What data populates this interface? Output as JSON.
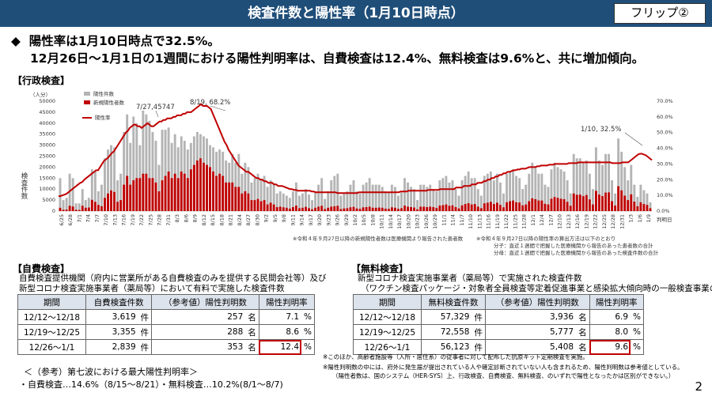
{
  "header": {
    "title": "検査件数と陽性率（1月10日時点）",
    "flip_label": "フリップ②"
  },
  "headline": {
    "bullet": "◆",
    "line1": "陽性率は1月10日時点で32.5%。",
    "line2": "12月26日～1月1日の1週間における陽性判明率は、自費検査は12.4%、無料検査は9.6%と、共に増加傾向。"
  },
  "admin_section": "【行政検査】",
  "chart_data": {
    "type": "bar+line",
    "y_unit": "（人分）",
    "ylabel": "検査件数",
    "ylim": [
      0,
      50000
    ],
    "y2lim": [
      0,
      70
    ],
    "y_ticks": [
      "0",
      "5000",
      "10000",
      "15000",
      "20000",
      "25000",
      "30000",
      "35000",
      "40000",
      "45000",
      "50000"
    ],
    "y2_ticks": [
      "0.0%",
      "10.0%",
      "20.0%",
      "30.0%",
      "40.0%",
      "50.0%",
      "60.0%",
      "70.0%"
    ],
    "x_ticks": [
      "6/25",
      "6/28",
      "7/1",
      "7/4",
      "7/7",
      "7/10",
      "7/13",
      "7/16",
      "7/19",
      "7/22",
      "7/25",
      "7/28",
      "7/31",
      "8/3",
      "8/6",
      "8/9",
      "8/12",
      "8/15",
      "8/18",
      "8/21",
      "8/24",
      "8/27",
      "8/30",
      "9/2",
      "9/5",
      "9/8",
      "9/11",
      "9/14",
      "9/17",
      "9/20",
      "9/23",
      "9/26",
      "9/29",
      "10/2",
      "10/5",
      "10/8",
      "10/11",
      "10/14",
      "10/17",
      "10/20",
      "10/23",
      "10/26",
      "10/29",
      "11/1",
      "11/4",
      "11/7",
      "11/10",
      "11/13",
      "11/16",
      "11/19",
      "11/22",
      "11/25",
      "11/28",
      "12/1",
      "12/4",
      "12/7",
      "12/10",
      "12/13",
      "12/16",
      "12/19",
      "12/22",
      "12/25",
      "12/28",
      "12/31",
      "1/3",
      "1/6",
      "1/9"
    ],
    "x_axis_label": "判明日",
    "legend": [
      "陽性件数",
      "新規陽性者数",
      "陽性率"
    ],
    "legend_position": "top-left",
    "colors": {
      "tests": "#b4b4b4",
      "positives": "#c00000",
      "rate": "#c00000"
    },
    "annotations": [
      "7/27,45747",
      "8/19, 68.2%",
      "1/10, 32.5%"
    ],
    "grid": false,
    "series": [
      {
        "name": "陽性件数",
        "values": [
          15000,
          5000,
          6000,
          17000,
          15000,
          3500,
          3500,
          10000,
          5000,
          6000,
          19000,
          18000,
          9000,
          12000,
          24000,
          28000,
          30000,
          29000,
          14000,
          17000,
          36000,
          44000,
          31000,
          43000,
          40000,
          30000,
          45747,
          44000,
          41000,
          36000,
          32000,
          21000,
          37000,
          37000,
          38000,
          31000,
          35000,
          29000,
          34000,
          32000,
          28000,
          31000,
          34000,
          36000,
          35000,
          34000,
          33000,
          30000,
          29000,
          27000,
          28000,
          27000,
          23000,
          22000,
          26000,
          22000,
          26000,
          17000,
          22000,
          20000,
          13000,
          15000,
          17000,
          14000,
          16000,
          11000,
          14000,
          12000,
          8000,
          9000,
          8000,
          7000,
          6000,
          9000,
          13000,
          7000,
          8000,
          10000,
          7500,
          5000,
          9000,
          12000,
          15000,
          5500,
          9000,
          14000,
          16000,
          17000,
          7000,
          8000,
          9000,
          12000,
          14000,
          9000,
          8000,
          12000,
          13000,
          15000,
          12000,
          12000,
          12000,
          11000,
          9000,
          8500,
          12000,
          11000,
          7000,
          8500,
          15000,
          13000,
          11000,
          10000,
          5000,
          12000,
          12000,
          11000,
          12000,
          10000,
          9000,
          14000,
          15000,
          16000,
          13000,
          14000,
          10000,
          7000,
          14000,
          16000,
          18000,
          15000,
          15000,
          10000,
          7000,
          16000,
          17000,
          18000,
          14000,
          17000,
          13000,
          8000,
          17000,
          18000,
          19000,
          16000,
          15000,
          10000,
          12000,
          17000,
          22000,
          20000,
          17000,
          17000,
          12000,
          11000,
          19000,
          22000,
          20000,
          19000,
          18000,
          14000,
          8000,
          26000,
          24000,
          24000,
          22000,
          23000,
          17000,
          10000,
          29000,
          23000,
          21000,
          26000,
          26000,
          14000,
          8000,
          33000,
          27000,
          20000,
          14000,
          21000,
          12000,
          6500,
          12000,
          9500,
          8000,
          4000
        ]
      },
      {
        "name": "新規陽性者数",
        "values": [
          1500,
          600,
          700,
          2400,
          2100,
          600,
          500,
          2400,
          1500,
          1600,
          5100,
          4200,
          2800,
          2200,
          6000,
          8000,
          9400,
          8700,
          4200,
          5000,
          12000,
          16000,
          12000,
          14000,
          15000,
          15000,
          17000,
          17000,
          15000,
          15000,
          13000,
          9000,
          14000,
          16000,
          18000,
          15000,
          17000,
          15000,
          18000,
          17000,
          15000,
          19000,
          21000,
          23000,
          24000,
          22000,
          21000,
          20000,
          18000,
          16000,
          17000,
          16000,
          13000,
          13000,
          13000,
          11000,
          11000,
          8000,
          9000,
          8000,
          5000,
          5000,
          5500,
          4500,
          5000,
          3000,
          3800,
          3000,
          1800,
          2000,
          1700,
          1500,
          1100,
          1800,
          2500,
          1300,
          1500,
          1900,
          1300,
          800,
          1500,
          2000,
          2400,
          900,
          1500,
          2000,
          2200,
          2400,
          900,
          1200,
          1300,
          1700,
          1900,
          1200,
          1000,
          1700,
          1800,
          2000,
          1500,
          1500,
          1600,
          1500,
          1100,
          1000,
          1700,
          1500,
          1000,
          1300,
          2500,
          2000,
          1800,
          1600,
          800,
          2000,
          2000,
          1800,
          2000,
          1800,
          1400,
          2500,
          2700,
          3000,
          2400,
          2600,
          1800,
          1200,
          2600,
          3200,
          3600,
          3000,
          3200,
          2000,
          1300,
          3500,
          3800,
          4200,
          3200,
          3800,
          2800,
          1700,
          4000,
          4500,
          4800,
          4000,
          3900,
          2600,
          3000,
          4500,
          5800,
          5400,
          4800,
          4800,
          3300,
          3000,
          5600,
          6400,
          6000,
          5600,
          5400,
          4200,
          2400,
          8000,
          7400,
          7500,
          6800,
          7300,
          5300,
          3000,
          9200,
          7500,
          6800,
          8400,
          8500,
          4500,
          2500,
          11300,
          9400,
          7000,
          5000,
          7600,
          4300,
          2200,
          4000,
          3200,
          2800,
          1300
        ]
      },
      {
        "name": "陽性率",
        "values": [
          9.5,
          9.5,
          10,
          10.5,
          11,
          12,
          13,
          14,
          15,
          16,
          17,
          18,
          18.5,
          20,
          21,
          22,
          23,
          24,
          25,
          26,
          26,
          28,
          30,
          32,
          33,
          34,
          35.5,
          37,
          38,
          40,
          42,
          44,
          46,
          48,
          50,
          51,
          53,
          54,
          55,
          55,
          54,
          54,
          53,
          54,
          55,
          56,
          55,
          54,
          54,
          55,
          56,
          57,
          57,
          58,
          58,
          59,
          59,
          59,
          60,
          60,
          61,
          61,
          61,
          62,
          62,
          63,
          63,
          63,
          64,
          65,
          66,
          67,
          68.2,
          67,
          67,
          67,
          66,
          65,
          62,
          59,
          56,
          53,
          50,
          47,
          44,
          42,
          39,
          37,
          35,
          33,
          31,
          29,
          28,
          27,
          26,
          25,
          25,
          24,
          23,
          22,
          21,
          21,
          20,
          20,
          19,
          19,
          18,
          18,
          18,
          17,
          17,
          16,
          16,
          16,
          15.5,
          15,
          14.5,
          14,
          14,
          13.5,
          13.5,
          13,
          13,
          13,
          13,
          13,
          13,
          13,
          12.5,
          12.5,
          12,
          12,
          12,
          12,
          12,
          12,
          12,
          12,
          12,
          12,
          12,
          11.5,
          11.5,
          11.5,
          11.5,
          11.5,
          11.5,
          11.5,
          11.5,
          11.5,
          11.5,
          11.5,
          12,
          12,
          12,
          12,
          12,
          12,
          12,
          12,
          12,
          12,
          12,
          12,
          12,
          12,
          12,
          12,
          12,
          12,
          12,
          12,
          12,
          12.5,
          12.5,
          12.5,
          12.5,
          13,
          13,
          13,
          13,
          13,
          13,
          13,
          13,
          13,
          13,
          13.5,
          13.5,
          13.5,
          13.5,
          13.5,
          13.5,
          14,
          14,
          14,
          14,
          14,
          14,
          14,
          14,
          15,
          15,
          15,
          15,
          16,
          16,
          16,
          16,
          17,
          17,
          17,
          18,
          18,
          18,
          19,
          19,
          20,
          20,
          21,
          21,
          22,
          22,
          23,
          23,
          24,
          24,
          25,
          25,
          25.5,
          26,
          26,
          26.5,
          26.5,
          27,
          27,
          27,
          27.5,
          28,
          28,
          28,
          28,
          28.5,
          28.5,
          29,
          29,
          29,
          29,
          29.5,
          29.5,
          29.5,
          30,
          30,
          30,
          30,
          30,
          30,
          30,
          30.5,
          30.5,
          30.5,
          30.5,
          30.5,
          31,
          31,
          31,
          31,
          31,
          31,
          31,
          31,
          31,
          31,
          31,
          31,
          31,
          31,
          31,
          31,
          31,
          30.5,
          30.5,
          30.5,
          30.5,
          30.5,
          31,
          31,
          31,
          31,
          32,
          33,
          34,
          35,
          36,
          36.5,
          36.5,
          36,
          35.5,
          34.5,
          33.5,
          32.5
        ]
      }
    ],
    "notes": [
      "※令和４年９月27日以降の新規陽性者数は医療機関より報告された患者数",
      "※令和４年９月27日以降の陽性率の算出方法は以下のとおり",
      "分子：直近１週間で把握した医療機関から報告のあった患者数の合計",
      "分母：直近１週間で把握した医療機関から報告のあった検査件数の合計"
    ]
  },
  "self_paid": {
    "title": "【自費検査】",
    "desc1": "自費検査提供機関（府内に営業所がある自費検査のみを提供する民間会社等）及び",
    "desc2": "新型コロナ検査実施事業者（薬局等）において有料で実施した検査件数",
    "headers": [
      "期間",
      "自費検査件数",
      "（参考値）陽性判明数",
      "陽性判明率"
    ],
    "rows": [
      {
        "period": "12/12～12/18",
        "count": "3,619",
        "count_unit": "件",
        "pos": "257",
        "pos_unit": "名",
        "rate": "7.1",
        "rate_unit": "%"
      },
      {
        "period": "12/19～12/25",
        "count": "3,355",
        "count_unit": "件",
        "pos": "288",
        "pos_unit": "名",
        "rate": "8.6",
        "rate_unit": "%"
      },
      {
        "period": "12/26～1/1",
        "count": "2,839",
        "count_unit": "件",
        "pos": "353",
        "pos_unit": "名",
        "rate": "12.4",
        "rate_unit": "%"
      }
    ],
    "ref_title": "＜（参考）第七波における最大陽性判明率＞",
    "ref_body": "・自費検査…14.6%（8/15～8/21）・無料検査…10.2%(8/1～8/7)"
  },
  "free": {
    "title": "【無料検査】",
    "desc1": "新型コロナ検査実施事業者（薬局等）で実施された検査件数",
    "desc2": "（ワクチン検査パッケージ・対象者全員検査等定着促進事業と感染拡大傾向時の一般検査事業の合計）",
    "headers": [
      "期間",
      "無料検査件数",
      "（参考値）陽性判明数",
      "陽性判明率"
    ],
    "rows": [
      {
        "period": "12/12～12/18",
        "count": "57,329",
        "count_unit": "件",
        "pos": "3,936",
        "pos_unit": "名",
        "rate": "6.9",
        "rate_unit": "%"
      },
      {
        "period": "12/19～12/25",
        "count": "72,558",
        "count_unit": "件",
        "pos": "5,777",
        "pos_unit": "名",
        "rate": "8.0",
        "rate_unit": "%"
      },
      {
        "period": "12/26～1/1",
        "count": "56,123",
        "count_unit": "件",
        "pos": "5,408",
        "pos_unit": "名",
        "rate": "9.6",
        "rate_unit": "%"
      }
    ],
    "note1": "※このほか、高齢者施設等（入所・居住系）の従事者に対して配布した抗原キット定期検査を実施。",
    "note2": "※陽性判明数の中には、府外に発生届が提出されている人や確定診断されていない人も含まれるため、陽性判明数は参考値としている。",
    "note3": "（陽性者数は、国のシステム（HER-SYS）上、行政検査、自費検査、無料検査、のいずれで陽性となったかは区別ができない。）"
  },
  "page_number": "2"
}
